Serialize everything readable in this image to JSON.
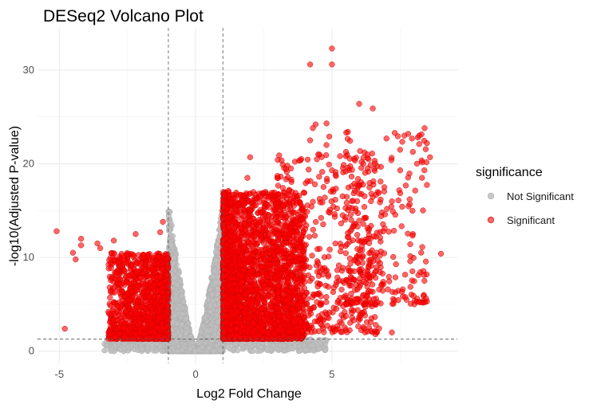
{
  "chart_data": {
    "type": "scatter",
    "title": "DESeq2 Volcano Plot",
    "xlabel": "Log2 Fold Change",
    "ylabel": "-log10(Adjusted P-value)",
    "xlim": [
      -5.8,
      9.6
    ],
    "ylim": [
      -1.3,
      34.5
    ],
    "x_ticks": [
      -5,
      0,
      5
    ],
    "y_ticks": [
      0,
      10,
      20,
      30
    ],
    "grid": true,
    "theme": "minimal",
    "thresholds": {
      "log2fc": [
        -1,
        1
      ],
      "neg_log10_padj": 1.3
    },
    "legend": {
      "title": "significance",
      "placement": "right",
      "entries": [
        {
          "label": "Not Significant",
          "color": "#bebebe"
        },
        {
          "label": "Significant",
          "color": "#ff0000"
        }
      ]
    },
    "series": [
      {
        "name": "Not Significant",
        "color": "#bebebe",
        "clusters": [
          {
            "x_range": [
              -3.4,
              -1.0
            ],
            "y_range": [
              0,
              1.3
            ],
            "count": 140
          },
          {
            "x_range": [
              -1.0,
              1.0
            ],
            "y_range": [
              0,
              16.0
            ],
            "count": 3400
          },
          {
            "x_range": [
              1.0,
              4.8
            ],
            "y_range": [
              0,
              1.3
            ],
            "count": 200
          }
        ]
      },
      {
        "name": "Significant",
        "color": "#ff0000",
        "clusters": [
          {
            "x_range": [
              -3.2,
              -1.0
            ],
            "y_range": [
              1.3,
              10.5
            ],
            "count": 1200
          },
          {
            "x_range": [
              1.0,
              4.0
            ],
            "y_range": [
              1.3,
              17.0
            ],
            "count": 2600
          },
          {
            "x_range": [
              3.0,
              6.8
            ],
            "y_range": [
              2.0,
              21.0
            ],
            "count": 550
          },
          {
            "x_range": [
              5.5,
              8.5
            ],
            "y_range": [
              5.0,
              23.5
            ],
            "count": 280
          }
        ],
        "points": [
          {
            "x": -5.1,
            "y": 12.8
          },
          {
            "x": -4.8,
            "y": 2.4
          },
          {
            "x": -4.5,
            "y": 10.5
          },
          {
            "x": -4.4,
            "y": 9.8
          },
          {
            "x": -4.2,
            "y": 11.3
          },
          {
            "x": -4.2,
            "y": 12.0
          },
          {
            "x": -3.6,
            "y": 11.5
          },
          {
            "x": -3.5,
            "y": 11.0
          },
          {
            "x": -3.0,
            "y": 11.8
          },
          {
            "x": -2.2,
            "y": 12.5
          },
          {
            "x": -1.2,
            "y": 13.8
          },
          {
            "x": -1.3,
            "y": 12.7
          },
          {
            "x": 1.2,
            "y": 17.1
          },
          {
            "x": 1.9,
            "y": 18.5
          },
          {
            "x": 2.0,
            "y": 20.7
          },
          {
            "x": 3.0,
            "y": 18.7
          },
          {
            "x": 3.5,
            "y": 19.5
          },
          {
            "x": 4.2,
            "y": 22.5
          },
          {
            "x": 4.3,
            "y": 23.8
          },
          {
            "x": 4.4,
            "y": 24.2
          },
          {
            "x": 4.5,
            "y": 21.0
          },
          {
            "x": 4.8,
            "y": 24.3
          },
          {
            "x": 4.9,
            "y": 22.9
          },
          {
            "x": 4.8,
            "y": 22.0
          },
          {
            "x": 5.0,
            "y": 19.3
          },
          {
            "x": 4.2,
            "y": 30.6
          },
          {
            "x": 5.0,
            "y": 30.6
          },
          {
            "x": 5.0,
            "y": 32.3
          },
          {
            "x": 6.0,
            "y": 26.4
          },
          {
            "x": 6.5,
            "y": 25.9
          },
          {
            "x": 6.3,
            "y": 21.0
          },
          {
            "x": 7.0,
            "y": 22.7
          },
          {
            "x": 7.5,
            "y": 21.5
          },
          {
            "x": 7.8,
            "y": 23.2
          },
          {
            "x": 8.2,
            "y": 23.0
          },
          {
            "x": 8.4,
            "y": 23.8
          },
          {
            "x": 8.2,
            "y": 22.1
          },
          {
            "x": 8.6,
            "y": 20.7
          },
          {
            "x": 9.0,
            "y": 10.4
          },
          {
            "x": 6.6,
            "y": 1.8
          },
          {
            "x": 7.2,
            "y": 2.0
          }
        ]
      }
    ]
  }
}
